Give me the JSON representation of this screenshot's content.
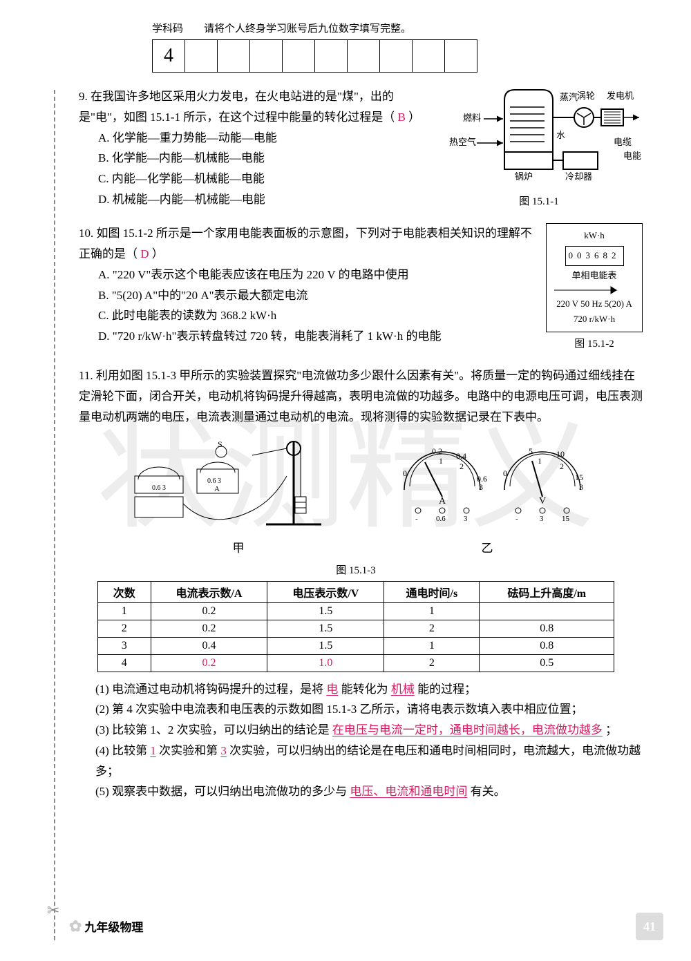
{
  "header": {
    "subject_label": "学科码",
    "instruction": "请将个人终身学习账号后九位数字填写完整。",
    "first_digit": "4",
    "boxes": 10
  },
  "watermark": "状测精义",
  "q9": {
    "text": "9. 在我国许多地区采用火力发电，在火电站进的是\"煤\"，出的是\"电\"，如图 15.1-1 所示，在这个过程中能量的转化过程是（",
    "answer": "B",
    "suffix": "）",
    "optA": "A. 化学能—重力势能—动能—电能",
    "optB": "B. 化学能—内能—机械能—电能",
    "optC": "C. 内能—化学能—机械能—电能",
    "optD": "D. 机械能—内能—机械能—电能",
    "fig_caption": "图 15.1-1",
    "fig_labels": {
      "turbine": "涡轮",
      "gen": "发电机",
      "steam": "蒸汽",
      "fuel": "燃料",
      "hotair": "热空气",
      "water": "水",
      "boiler": "锅炉",
      "cooler": "冷却器",
      "cable": "电缆",
      "energy": "电能"
    }
  },
  "q10": {
    "text": "10. 如图 15.1-2 所示是一个家用电能表面板的示意图，下列对于电能表相关知识的理解不正确的是（",
    "answer": "D",
    "suffix": "）",
    "optA": "A. \"220 V\"表示这个电能表应该在电压为 220 V 的电路中使用",
    "optB": "B. \"5(20) A\"中的\"20 A\"表示最大额定电流",
    "optC": "C. 此时电能表的读数为 368.2 kW·h",
    "optD": "D. \"720 r/kW·h\"表示转盘转过 720 转，电能表消耗了 1 kW·h 的电能",
    "fig_caption": "图 15.1-2",
    "meter": {
      "unit": "kW·h",
      "reading": "003682",
      "label": "单相电能表",
      "spec1": "220 V 50 Hz 5(20) A",
      "spec2": "720 r/kW·h"
    }
  },
  "q11": {
    "text": "11. 利用如图 15.1-3 甲所示的实验装置探究\"电流做功多少跟什么因素有关\"。将质量一定的钩码通过细线挂在定滑轮下面，闭合开关，电动机将钩码提升得越高，表明电流做的功越多。电路中的电源电压可调，电压表测量电动机两端的电压，电流表测量通过电动机的电流。现将测得的实验数据记录在下表中。",
    "fig_caption": "图 15.1-3",
    "sub_jia": "甲",
    "sub_yi": "乙"
  },
  "table": {
    "columns": [
      "次数",
      "电流表示数/A",
      "电压表示数/V",
      "通电时间/s",
      "砝码上升高度/m"
    ],
    "rows": [
      [
        "1",
        "0.2",
        "1.5",
        "1",
        ""
      ],
      [
        "2",
        "0.2",
        "1.5",
        "2",
        "0.8"
      ],
      [
        "3",
        "0.4",
        "1.5",
        "1",
        "0.8"
      ],
      [
        "4",
        "0.2",
        "1.0",
        "2",
        "0.5"
      ]
    ],
    "row4_answer_cols": [
      1,
      2
    ]
  },
  "subq": {
    "s1_a": "(1) 电流通过电动机将钩码提升的过程，是将",
    "s1_ans1": "电",
    "s1_b": "能转化为",
    "s1_ans2": "机械",
    "s1_c": "能的过程；",
    "s2": "(2) 第 4 次实验中电流表和电压表的示数如图 15.1-3 乙所示，请将电表示数填入表中相应位置；",
    "s3_a": "(3) 比较第 1、2 次实验，可以归纳出的结论是",
    "s3_ans": "在电压与电流一定时，通电时间越长，电流做功越多",
    "s3_b": "；",
    "s4_a": "(4) 比较第",
    "s4_ans1": "1",
    "s4_b": "次实验和第",
    "s4_ans2": "3",
    "s4_c": "次实验，可以归纳出的结论是在电压和通电时间相同时，电流越大，电流做功越多；",
    "s5_a": "(5) 观察表中数据，可以归纳出电流做功的多少与",
    "s5_ans": "电压、电流和通电时间",
    "s5_b": "有关。"
  },
  "footer": {
    "grade": "九年级物理",
    "page": "41"
  }
}
